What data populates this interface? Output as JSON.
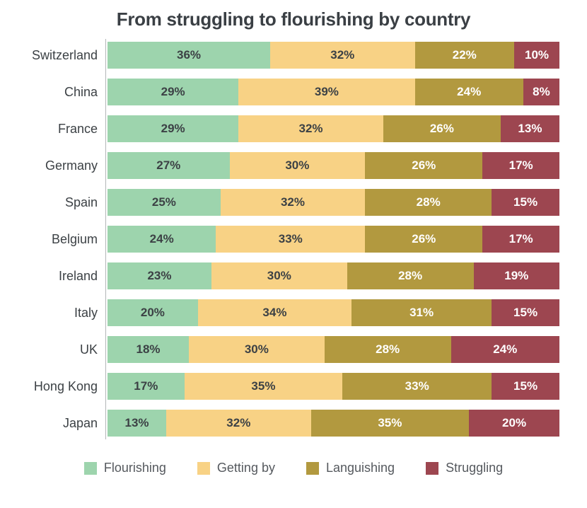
{
  "chart_data": {
    "type": "bar",
    "orientation": "horizontal",
    "stacked": true,
    "unit": "%",
    "title": "From struggling to flourishing by country",
    "categories": [
      "Switzerland",
      "China",
      "France",
      "Germany",
      "Spain",
      "Belgium",
      "Ireland",
      "Italy",
      "UK",
      "Hong Kong",
      "Japan"
    ],
    "series": [
      {
        "name": "Flourishing",
        "color": "#9dd4ad",
        "text_color": "#3c4145",
        "values": [
          36,
          29,
          29,
          27,
          25,
          24,
          23,
          20,
          18,
          17,
          13
        ]
      },
      {
        "name": "Getting by",
        "color": "#f8d285",
        "text_color": "#3c4145",
        "values": [
          32,
          39,
          32,
          30,
          32,
          33,
          30,
          34,
          30,
          35,
          32
        ]
      },
      {
        "name": "Languishing",
        "color": "#b2993f",
        "text_color": "#ffffff",
        "values": [
          22,
          24,
          26,
          26,
          28,
          26,
          28,
          31,
          28,
          33,
          35
        ]
      },
      {
        "name": "Struggling",
        "color": "#9d4650",
        "text_color": "#ffffff",
        "values": [
          10,
          8,
          13,
          17,
          15,
          17,
          19,
          15,
          24,
          15,
          20
        ]
      }
    ],
    "xlim": [
      0,
      100
    ],
    "grid": false,
    "legend_position": "bottom",
    "style": {
      "title_color": "#3a3f44",
      "category_label_color": "#3c4145",
      "legend_text_color": "#55595e",
      "axis_line_color": "#b3b6b8",
      "background_color": "#ffffff"
    }
  }
}
